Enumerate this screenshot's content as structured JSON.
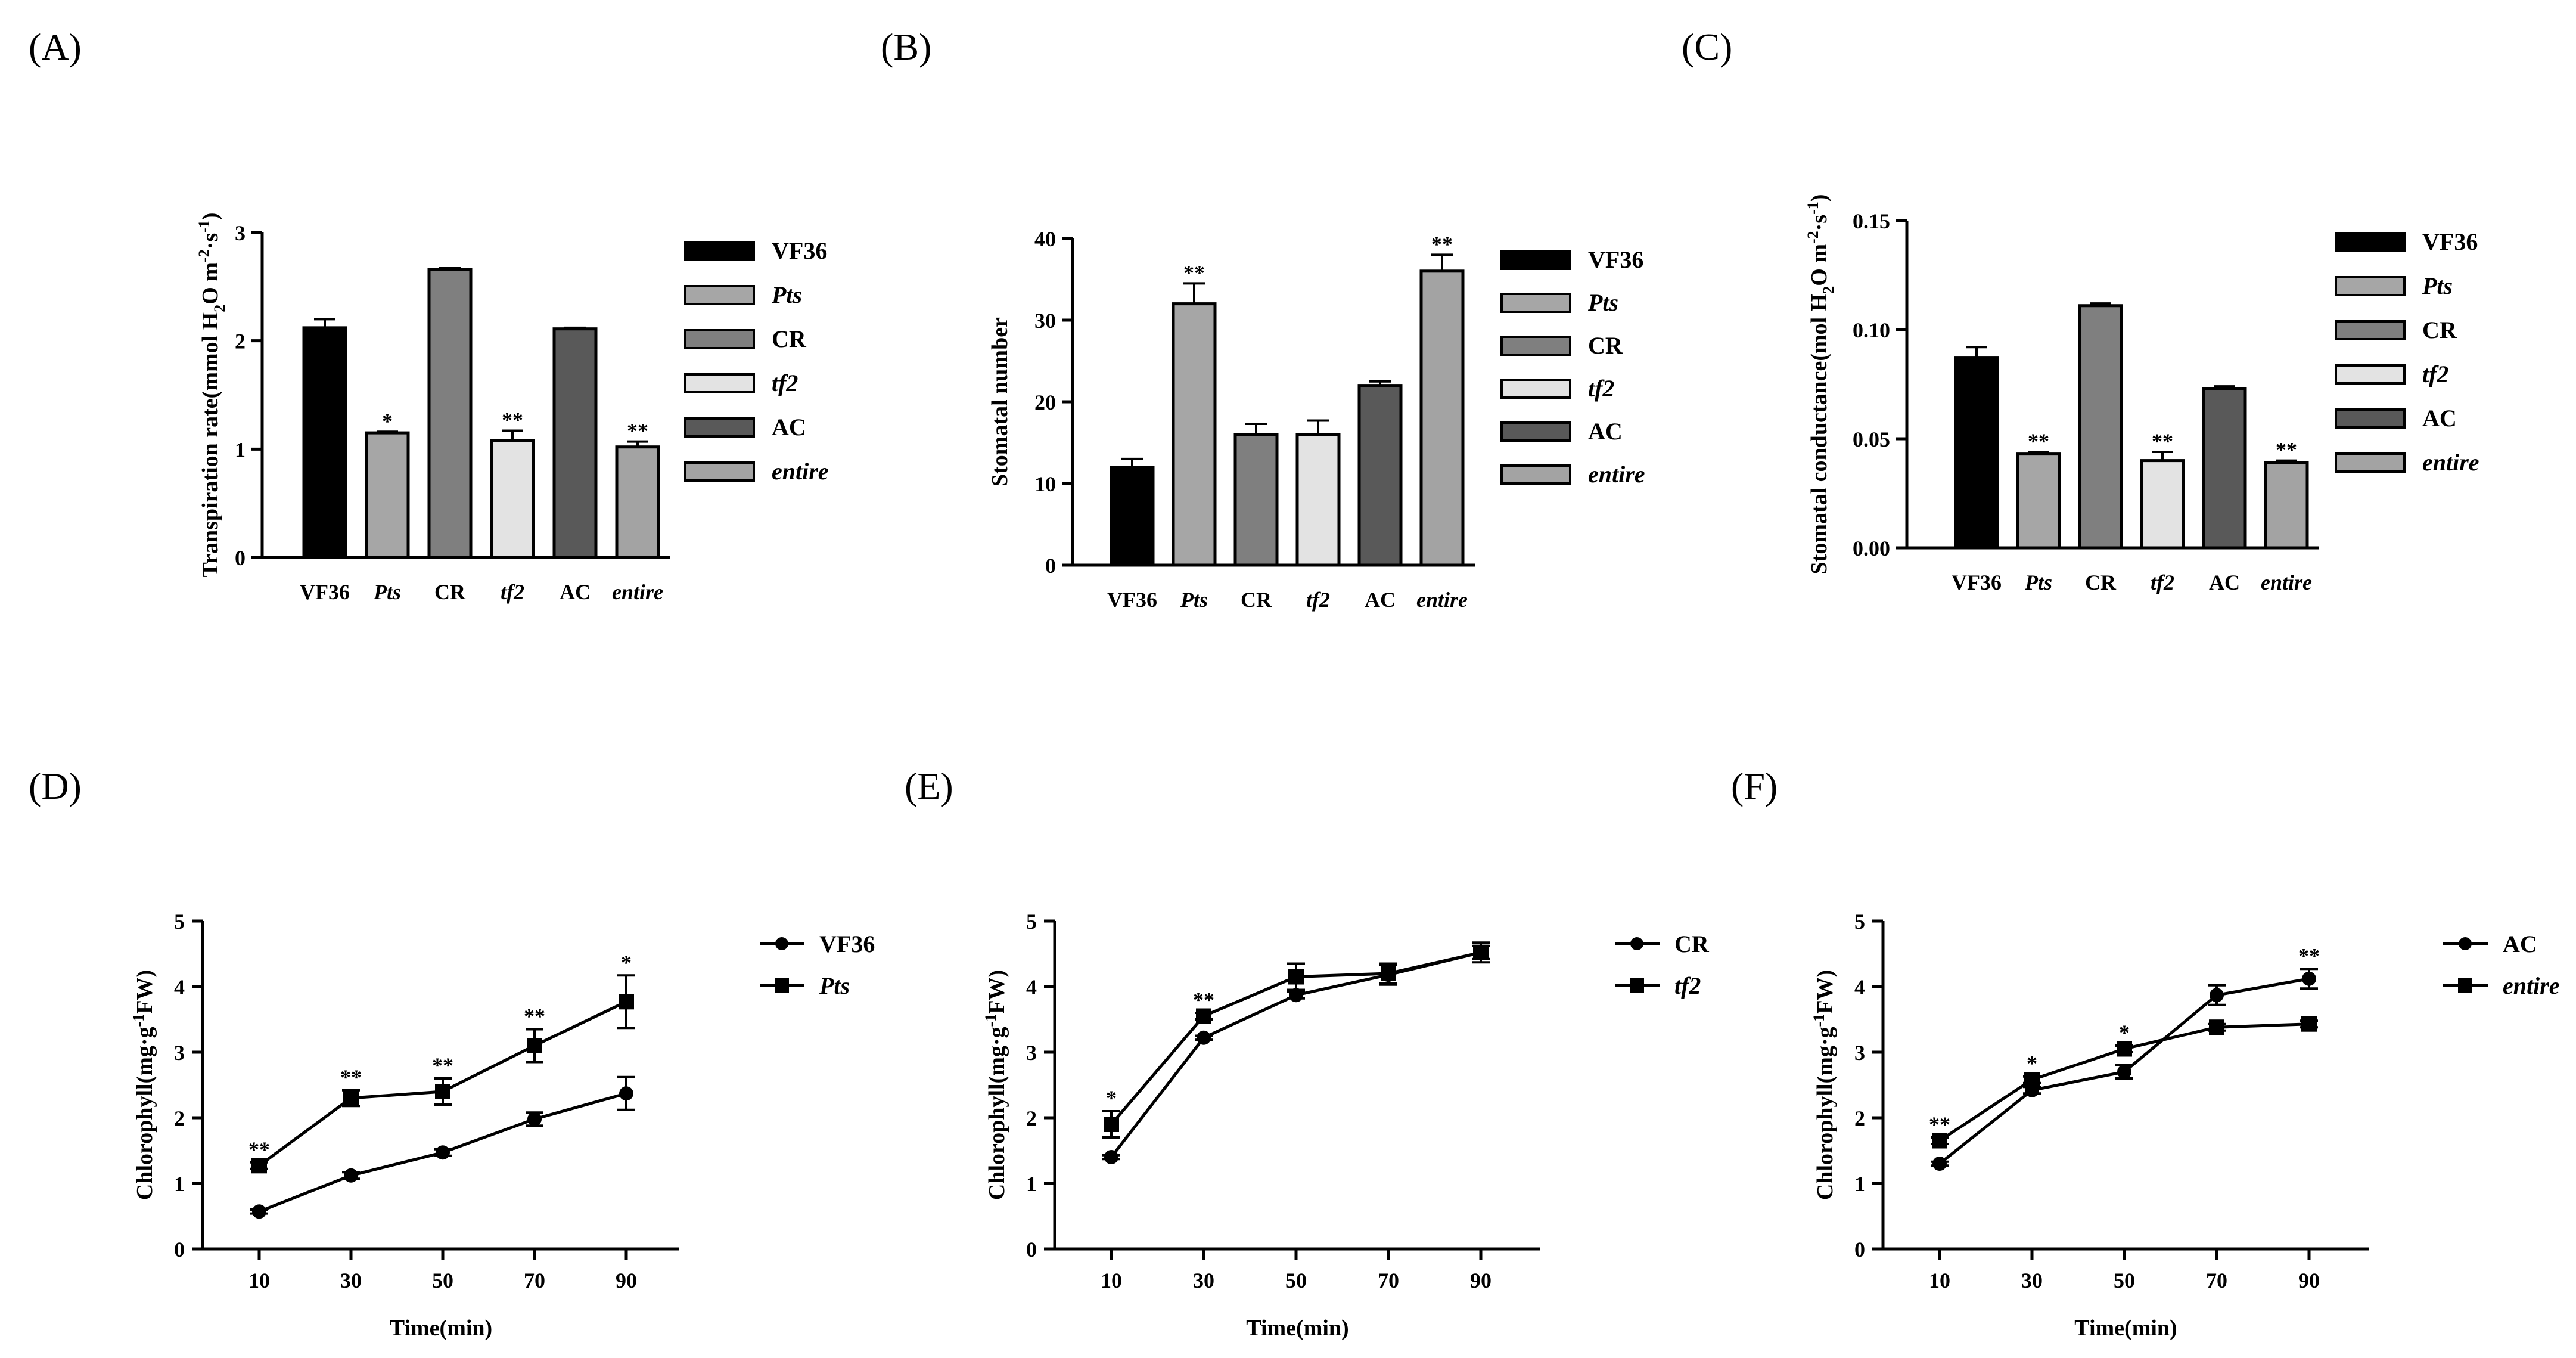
{
  "colors": {
    "VF36": "#000000",
    "Pts": "#a6a6a6",
    "CR": "#7f7f7f",
    "tf2": "#e3e3e3",
    "AC": "#595959",
    "entire": "#a3a3a3"
  },
  "chart_data": [
    {
      "panel": "(A)",
      "type": "bar",
      "ylabel_html": "Transpiration rate(mmol H<tspan class='sub' baseline-shift='sub' font-size='28'>2</tspan>O m<tspan baseline-shift='super' font-size='28'>-2</tspan>·s<tspan baseline-shift='super' font-size='28'>-1</tspan>)",
      "ylabel": "Transpiration rate(mmol H2O m-2·s-1)",
      "categories": [
        "VF36",
        "Pts",
        "CR",
        "tf2",
        "AC",
        "entire"
      ],
      "italic": [
        false,
        true,
        false,
        true,
        false,
        true
      ],
      "values": [
        2.12,
        1.15,
        2.66,
        1.08,
        2.11,
        1.02
      ],
      "errors": [
        0.08,
        0.01,
        0.01,
        0.09,
        0.01,
        0.05
      ],
      "significance": [
        "",
        "*",
        "",
        "**",
        "",
        "**"
      ],
      "yticks": [
        "0",
        "1",
        "2",
        "3"
      ],
      "ylim": [
        0,
        3
      ],
      "legend": [
        "VF36",
        "Pts",
        "CR",
        "tf2",
        "AC",
        "entire"
      ]
    },
    {
      "panel": "(B)",
      "type": "bar",
      "ylabel": "Stomatal number",
      "categories": [
        "VF36",
        "Pts",
        "CR",
        "tf2",
        "AC",
        "entire"
      ],
      "italic": [
        false,
        true,
        false,
        true,
        false,
        true
      ],
      "values": [
        12,
        32,
        16,
        16,
        22,
        36
      ],
      "errors": [
        1.0,
        2.5,
        1.3,
        1.7,
        0.5,
        2.0
      ],
      "significance": [
        "",
        "**",
        "",
        "",
        "",
        "**"
      ],
      "yticks": [
        "0",
        "10",
        "20",
        "30",
        "40"
      ],
      "ylim": [
        0,
        40
      ],
      "legend": [
        "VF36",
        "Pts",
        "CR",
        "tf2",
        "AC",
        "entire"
      ]
    },
    {
      "panel": "(C)",
      "type": "bar",
      "ylabel": "Stomatal conductance(mol H2O m-2·s-1)",
      "categories": [
        "VF36",
        "Pts",
        "CR",
        "tf2",
        "AC",
        "entire"
      ],
      "italic": [
        false,
        true,
        false,
        true,
        false,
        true
      ],
      "values": [
        0.087,
        0.043,
        0.111,
        0.04,
        0.073,
        0.039
      ],
      "errors": [
        0.005,
        0.001,
        0.001,
        0.004,
        0.001,
        0.001
      ],
      "significance": [
        "",
        "**",
        "",
        "**",
        "",
        "**"
      ],
      "yticks": [
        "0.00",
        "0.05",
        "0.10",
        "0.15"
      ],
      "ylim": [
        0,
        0.15
      ],
      "legend": [
        "VF36",
        "Pts",
        "CR",
        "tf2",
        "AC",
        "entire"
      ]
    },
    {
      "panel": "(D)",
      "type": "line",
      "ylabel": "Chlorophyll(mg·g-1FW)",
      "xlabel": "Time(min)",
      "x": [
        10,
        30,
        50,
        70,
        90
      ],
      "xticks": [
        "10",
        "30",
        "50",
        "70",
        "90"
      ],
      "yticks": [
        "0",
        "1",
        "2",
        "3",
        "4",
        "5"
      ],
      "ylim": [
        0,
        5
      ],
      "series": [
        {
          "name": "VF36",
          "italic": false,
          "marker": "circle",
          "values": [
            0.57,
            1.12,
            1.47,
            1.98,
            2.37
          ],
          "errors": [
            0.03,
            0.05,
            0.05,
            0.1,
            0.25
          ]
        },
        {
          "name": "Pts",
          "italic": true,
          "marker": "square",
          "values": [
            1.27,
            2.3,
            2.4,
            3.1,
            3.77
          ],
          "errors": [
            0.05,
            0.12,
            0.2,
            0.25,
            0.4
          ]
        }
      ],
      "significance": [
        "**",
        "**",
        "**",
        "**",
        "*"
      ]
    },
    {
      "panel": "(E)",
      "type": "line",
      "ylabel": "Chlorophyll(mg·g-1FW)",
      "xlabel": "Time(min)",
      "x": [
        10,
        30,
        50,
        70,
        90
      ],
      "xticks": [
        "10",
        "30",
        "50",
        "70",
        "90"
      ],
      "yticks": [
        "0",
        "1",
        "2",
        "3",
        "4",
        "5"
      ],
      "ylim": [
        0,
        5
      ],
      "series": [
        {
          "name": "CR",
          "italic": false,
          "marker": "circle",
          "values": [
            1.4,
            3.22,
            3.87,
            4.18,
            4.52
          ],
          "errors": [
            0.03,
            0.03,
            0.05,
            0.15,
            0.1
          ]
        },
        {
          "name": "tf2",
          "italic": true,
          "marker": "square",
          "values": [
            1.9,
            3.55,
            4.15,
            4.2,
            4.52
          ],
          "errors": [
            0.2,
            0.05,
            0.2,
            0.15,
            0.15
          ]
        }
      ],
      "significance": [
        "*",
        "**",
        "",
        "",
        ""
      ]
    },
    {
      "panel": "(F)",
      "type": "line",
      "ylabel": "Chlorophyll(mg·g-1FW)",
      "xlabel": "Time(min)",
      "x": [
        10,
        30,
        50,
        70,
        90
      ],
      "xticks": [
        "10",
        "30",
        "50",
        "70",
        "90"
      ],
      "yticks": [
        "0",
        "1",
        "2",
        "3",
        "4",
        "5"
      ],
      "ylim": [
        0,
        5
      ],
      "series": [
        {
          "name": "AC",
          "italic": false,
          "marker": "circle",
          "values": [
            1.3,
            2.42,
            2.7,
            3.87,
            4.12
          ],
          "errors": [
            0.03,
            0.05,
            0.1,
            0.15,
            0.15
          ]
        },
        {
          "name": "entire",
          "italic": true,
          "marker": "square",
          "values": [
            1.65,
            2.58,
            3.05,
            3.38,
            3.43
          ],
          "errors": [
            0.05,
            0.05,
            0.05,
            0.05,
            0.05
          ]
        }
      ],
      "significance": [
        "**",
        "*",
        "*",
        "",
        "**"
      ]
    }
  ]
}
